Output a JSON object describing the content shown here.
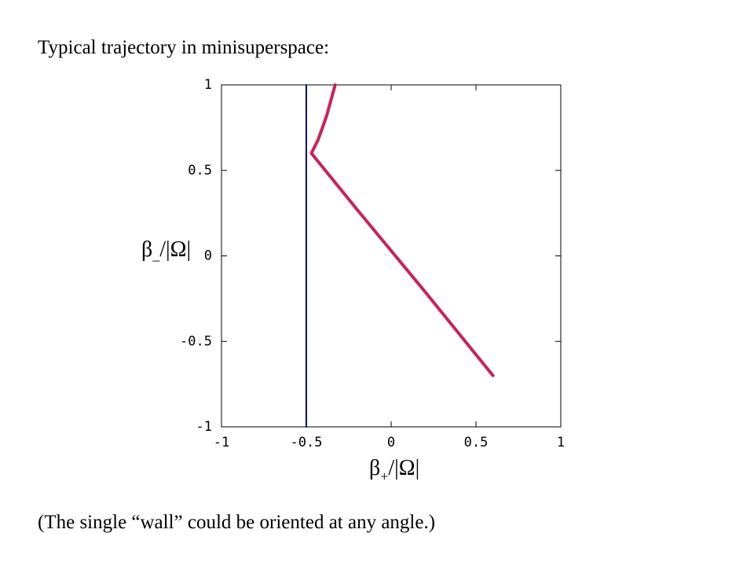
{
  "chart_data": {
    "type": "line",
    "title": "Typical trajectory in minisuperspace:",
    "annotation": "(The single “wall” could be oriented at any angle.)",
    "xlabel": {
      "symbol": "β",
      "sub": "+",
      "rest": "/|Ω|"
    },
    "ylabel": {
      "symbol": "β",
      "sub": "_",
      "rest": "/|Ω|"
    },
    "xlim": [
      -1,
      1
    ],
    "ylim": [
      -1,
      1
    ],
    "xticks": [
      -1,
      -0.5,
      0,
      0.5,
      1
    ],
    "yticks": [
      -1,
      -0.5,
      0,
      0.5,
      1
    ],
    "series": [
      {
        "color": "#000080",
        "x": [
          -0.5,
          -0.5
        ],
        "values": [
          -1,
          1
        ]
      },
      {
        "color": "#cc2255",
        "x": [
          0.6,
          0.2,
          -0.2,
          -0.47,
          -0.43,
          -0.38,
          -0.33
        ],
        "values": [
          -0.7,
          -0.21,
          0.27,
          0.6,
          0.68,
          0.82,
          1.0
        ]
      }
    ]
  }
}
